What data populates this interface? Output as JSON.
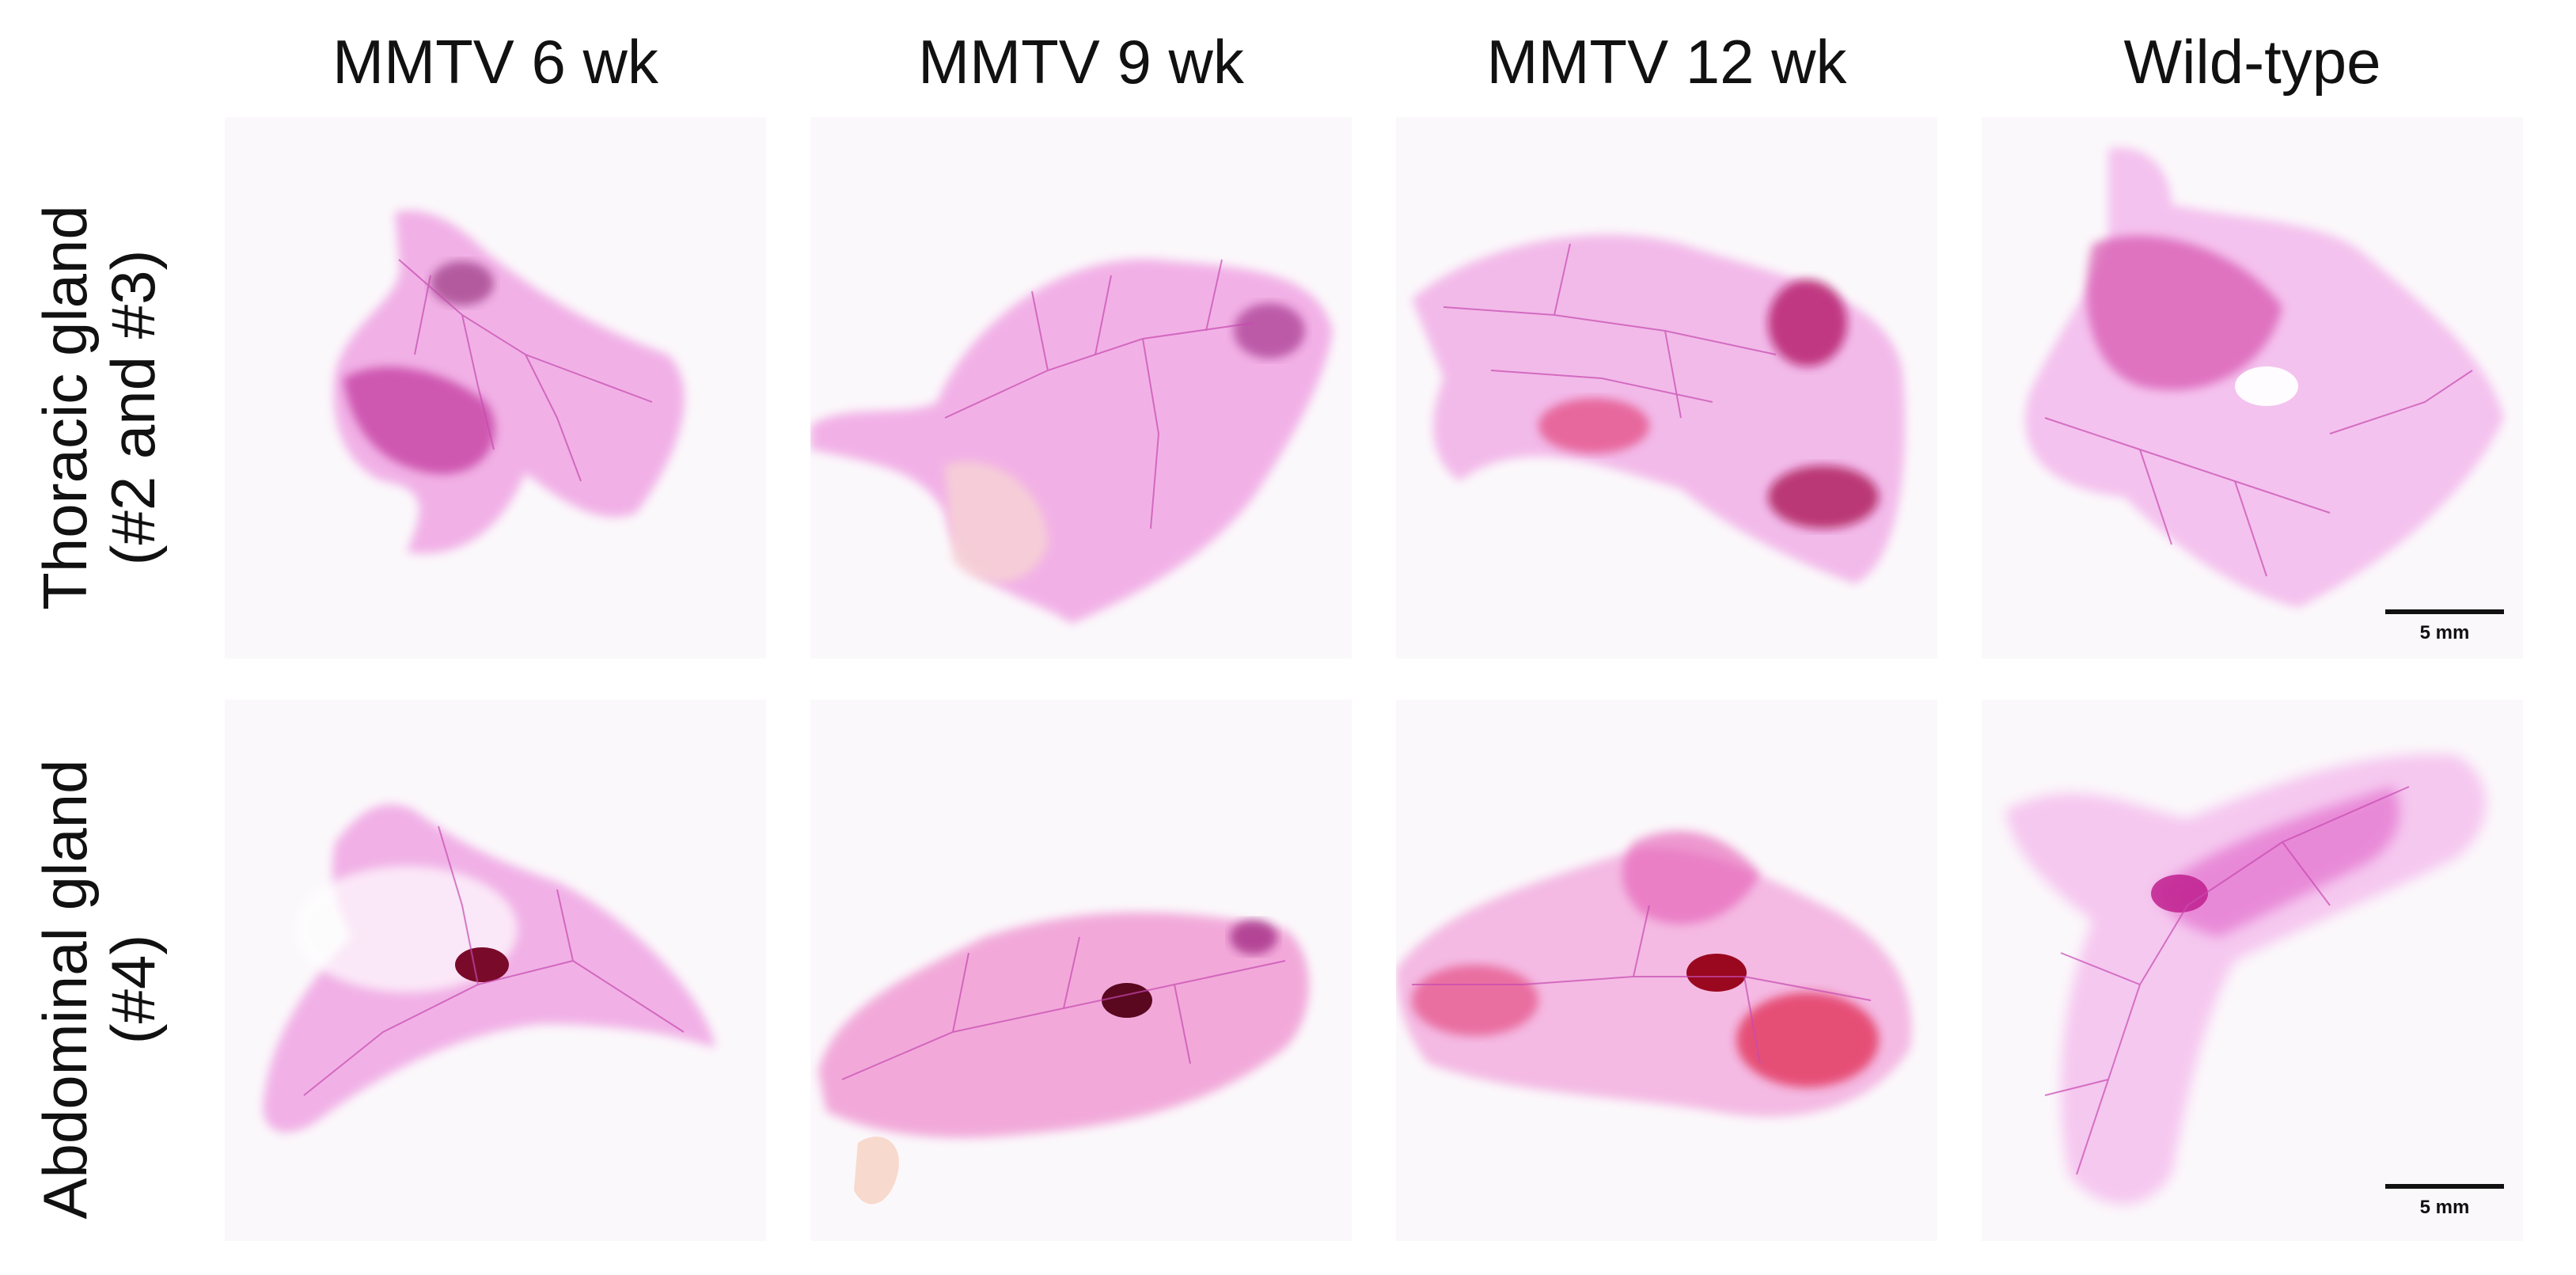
{
  "columns": [
    "MMTV 6 wk",
    "MMTV 9 wk",
    "MMTV 12 wk",
    "Wild-type"
  ],
  "rows": [
    {
      "line1": "Thoracic gland",
      "line2": "(#2 and #3)"
    },
    {
      "line1": "Abdominal gland",
      "line2": "(#4)"
    }
  ],
  "scale_bar_label": "5 mm",
  "colors": {
    "stain_light": "#f3b6ea",
    "stain_mid": "#e070d2",
    "stain_dark": "#b8208f",
    "tumor": "#8a0830",
    "ductal": "#cc44b4"
  }
}
